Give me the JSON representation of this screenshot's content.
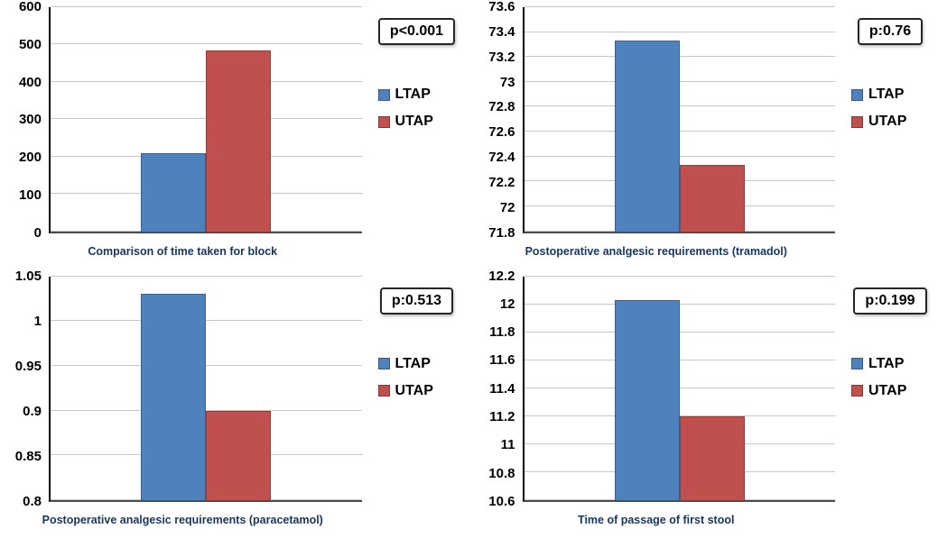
{
  "colors": {
    "ltap": "#4f81bd",
    "utap": "#c0504d",
    "gridline": "#c8c8c8",
    "axis": "#000000",
    "title_text": "#17365d"
  },
  "chart_data": [
    {
      "type": "bar",
      "title": "Comparison of time taken for block",
      "p_label": "p<0.001",
      "categories": [
        "LTAP",
        "UTAP"
      ],
      "values": [
        210,
        485
      ],
      "ylim": [
        0,
        600
      ],
      "yticks": [
        "600",
        "500",
        "400",
        "300",
        "200",
        "100",
        "0"
      ],
      "legend": [
        "LTAP",
        "UTAP"
      ],
      "legend_position": "right",
      "grid": true
    },
    {
      "type": "bar",
      "title": "Postoperative analgesic requirements (tramadol)",
      "p_label": "p:0.76",
      "categories": [
        "LTAP",
        "UTAP"
      ],
      "values": [
        73.33,
        72.33
      ],
      "ylim": [
        71.8,
        73.6
      ],
      "yticks": [
        "73.6",
        "73.4",
        "73.2",
        "73",
        "72.8",
        "72.6",
        "72.4",
        "72.2",
        "72",
        "71.8"
      ],
      "legend": [
        "LTAP",
        "UTAP"
      ],
      "legend_position": "right",
      "grid": true
    },
    {
      "type": "bar",
      "title": "Postoperative analgesic requirements (paracetamol)",
      "p_label": "p:0.513",
      "categories": [
        "LTAP",
        "UTAP"
      ],
      "values": [
        1.03,
        0.9
      ],
      "ylim": [
        0.8,
        1.05
      ],
      "yticks": [
        "1.05",
        "1",
        "0.95",
        "0.9",
        "0.85",
        "0.8"
      ],
      "legend": [
        "LTAP",
        "UTAP"
      ],
      "legend_position": "right",
      "grid": true
    },
    {
      "type": "bar",
      "title": "Time of passage of first stool",
      "p_label": "p:0.199",
      "categories": [
        "LTAP",
        "UTAP"
      ],
      "values": [
        12.03,
        11.2
      ],
      "ylim": [
        10.6,
        12.2
      ],
      "yticks": [
        "12.2",
        "12",
        "11.8",
        "11.6",
        "11.4",
        "11.2",
        "11",
        "10.8",
        "10.6"
      ],
      "legend": [
        "LTAP",
        "UTAP"
      ],
      "legend_position": "right",
      "grid": true
    }
  ]
}
